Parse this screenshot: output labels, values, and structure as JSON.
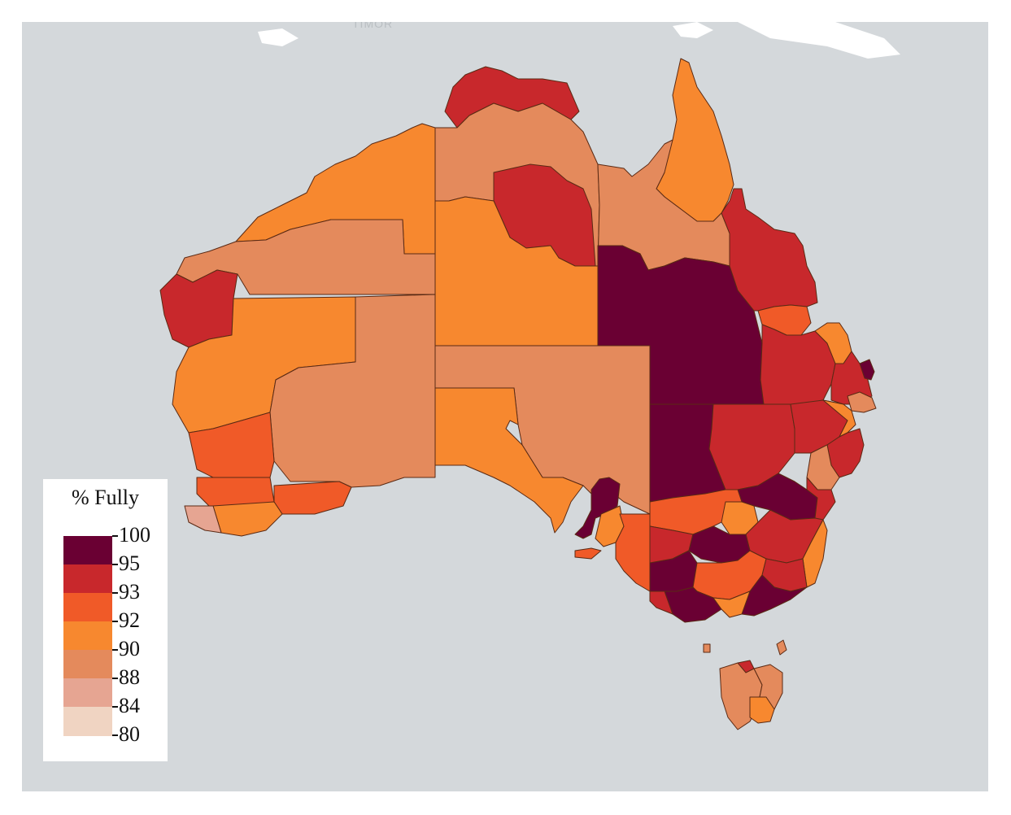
{
  "map": {
    "place_label": "TIMOR",
    "colors": {
      "ocean": "#d4d8db",
      "land_background": "#ffffff",
      "c95_100": "#6a0033",
      "c93_95": "#c8282c",
      "c92_93": "#f05a28",
      "c90_92": "#f7882f",
      "c88_90": "#e48a5c",
      "c84_88": "#e6a592",
      "c80_84": "#f0d4c2"
    }
  },
  "legend": {
    "title": "% Fully",
    "ticks": [
      "100",
      "95",
      "93",
      "92",
      "90",
      "88",
      "84",
      "80"
    ],
    "colors": [
      "#6a0033",
      "#c8282c",
      "#f05a28",
      "#f7882f",
      "#e48a5c",
      "#e6a592",
      "#f0d4c2"
    ]
  }
}
